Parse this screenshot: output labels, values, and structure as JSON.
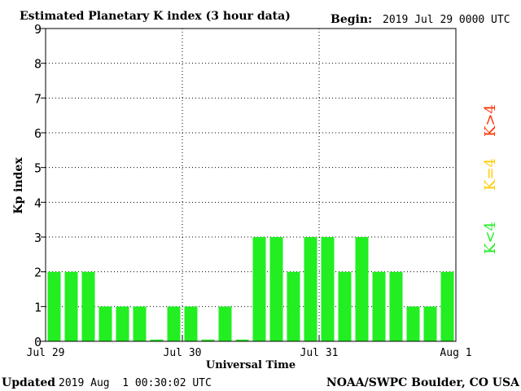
{
  "header": {
    "title": "Estimated Planetary K index (3 hour data)",
    "begin_label": "Begin:",
    "begin_value": "2019 Jul 29 0000 UTC"
  },
  "footer": {
    "updated_label": "Updated",
    "updated_value": "2019 Aug  1 00:30:02 UTC",
    "source": "NOAA/SWPC Boulder, CO USA"
  },
  "legend": {
    "low": "K<4",
    "equal": "K=4",
    "high": "K>4",
    "colors": {
      "low": "#22ee22",
      "equal": "#ffcc00",
      "high": "#ff3300"
    }
  },
  "chart_data": {
    "type": "bar",
    "title": "Estimated Planetary K index (3 hour data)",
    "xlabel": "Universal Time",
    "ylabel": "Kp index",
    "ylim": [
      0,
      9
    ],
    "yticks": [
      0,
      1,
      2,
      3,
      4,
      5,
      6,
      7,
      8,
      9
    ],
    "xticks": [
      "Jul 29",
      "Jul 30",
      "Jul 31",
      "Aug 1"
    ],
    "bar_interval": "3 hours",
    "values": [
      2,
      2,
      2,
      1,
      1,
      1,
      0.05,
      1,
      1,
      0.05,
      1,
      0.05,
      3,
      3,
      2,
      3,
      3,
      2,
      3,
      2,
      2,
      1,
      1,
      2
    ],
    "bar_color": "#22ee22",
    "grid": true
  }
}
